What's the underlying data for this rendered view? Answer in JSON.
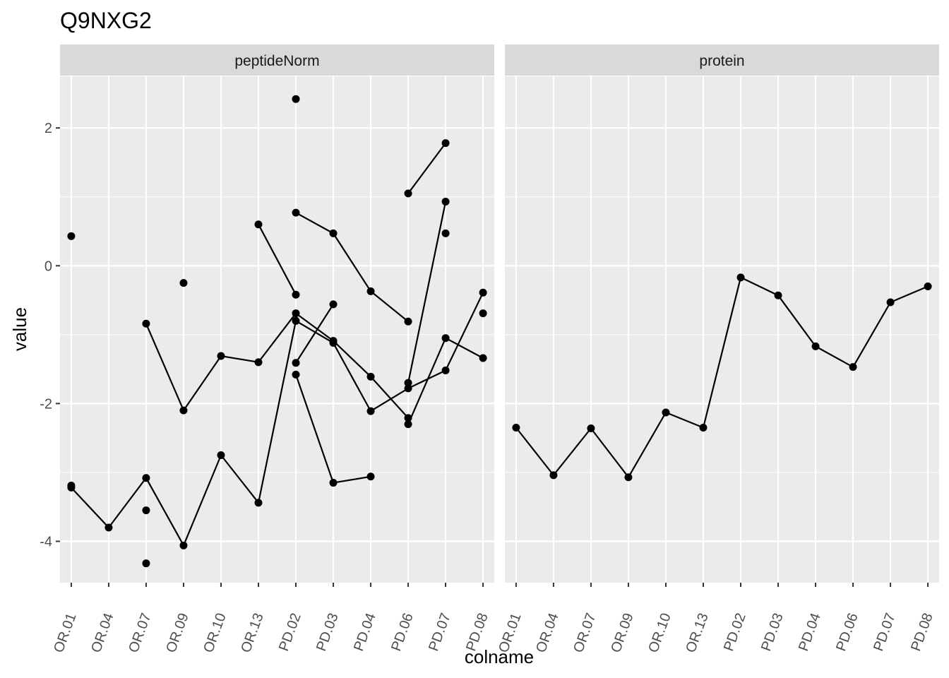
{
  "chart_data": {
    "type": "line",
    "title": "Q9NXG2",
    "xlabel": "colname",
    "ylabel": "value",
    "ylim": [
      -4.6,
      2.75
    ],
    "y_ticks": [
      -4,
      -2,
      0,
      2
    ],
    "y_tick_labels": [
      "-4",
      "-2",
      "0",
      "2"
    ],
    "grid": true,
    "categories": [
      "OR.01",
      "OR.04",
      "OR.07",
      "OR.09",
      "OR.10",
      "OR.13",
      "PD.02",
      "PD.03",
      "PD.04",
      "PD.06",
      "PD.07",
      "PD.08"
    ],
    "panels": [
      {
        "strip": "peptideNorm",
        "lines": [
          [
            [
              "OR.01",
              -3.22
            ],
            [
              "OR.04",
              -3.8
            ],
            [
              "OR.07",
              -3.08
            ],
            [
              "OR.09",
              -4.06
            ],
            [
              "OR.10",
              -2.75
            ],
            [
              "OR.13",
              -3.44
            ],
            [
              "PD.02",
              -0.8
            ],
            [
              "PD.03",
              -1.12
            ],
            [
              "PD.04",
              -2.11
            ],
            [
              "PD.06",
              -1.78
            ],
            [
              "PD.07",
              -1.52
            ],
            [
              "PD.08",
              -0.39
            ]
          ],
          [
            [
              "OR.07",
              -0.84
            ],
            [
              "OR.09",
              -2.1
            ],
            [
              "OR.10",
              -1.31
            ],
            [
              "OR.13",
              -1.4
            ],
            [
              "PD.02",
              -0.69
            ],
            [
              "PD.03",
              -1.09
            ],
            [
              "PD.04",
              -1.61
            ],
            [
              "PD.06",
              -2.21
            ]
          ],
          [
            [
              "OR.13",
              0.6
            ],
            [
              "PD.02",
              -0.42
            ]
          ],
          [
            [
              "PD.02",
              0.77
            ],
            [
              "PD.03",
              0.47
            ],
            [
              "PD.04",
              -0.37
            ],
            [
              "PD.06",
              -0.81
            ]
          ],
          [
            [
              "PD.02",
              -1.41
            ],
            [
              "PD.03",
              -0.56
            ]
          ],
          [
            [
              "PD.02",
              -1.58
            ],
            [
              "PD.03",
              -3.15
            ],
            [
              "PD.04",
              -3.06
            ]
          ],
          [
            [
              "PD.06",
              1.05
            ],
            [
              "PD.07",
              1.78
            ]
          ],
          [
            [
              "PD.06",
              -2.3
            ],
            [
              "PD.07",
              -1.05
            ],
            [
              "PD.08",
              -1.34
            ]
          ],
          [
            [
              "PD.06",
              -1.7
            ],
            [
              "PD.07",
              0.93
            ]
          ]
        ],
        "points": [
          [
            "OR.01",
            0.43
          ],
          [
            "OR.01",
            -3.19
          ],
          [
            "OR.07",
            -3.55
          ],
          [
            "OR.07",
            -4.32
          ],
          [
            "OR.09",
            -0.25
          ],
          [
            "PD.02",
            2.42
          ],
          [
            "PD.07",
            0.47
          ],
          [
            "PD.08",
            -0.69
          ]
        ]
      },
      {
        "strip": "protein",
        "lines": [
          [
            [
              "OR.01",
              -2.35
            ],
            [
              "OR.04",
              -3.04
            ],
            [
              "OR.07",
              -2.36
            ],
            [
              "OR.09",
              -3.07
            ],
            [
              "OR.10",
              -2.13
            ],
            [
              "OR.13",
              -2.35
            ],
            [
              "PD.02",
              -0.17
            ],
            [
              "PD.03",
              -0.43
            ],
            [
              "PD.04",
              -1.17
            ],
            [
              "PD.06",
              -1.47
            ],
            [
              "PD.07",
              -0.53
            ],
            [
              "PD.08",
              -0.3
            ]
          ]
        ],
        "points": []
      }
    ]
  }
}
